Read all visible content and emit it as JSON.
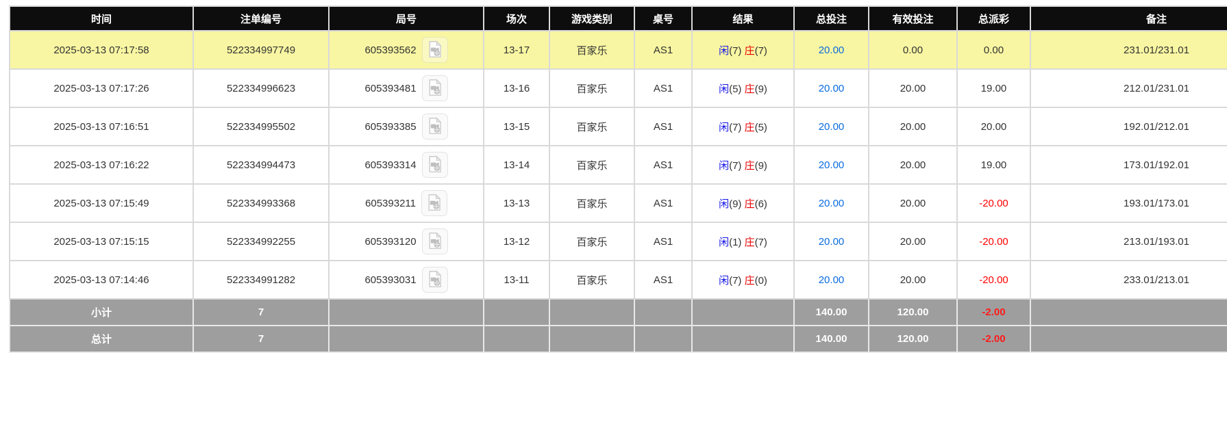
{
  "table": {
    "columns": [
      {
        "key": "time",
        "label": "时间"
      },
      {
        "key": "bet_id",
        "label": "注单编号"
      },
      {
        "key": "round_id",
        "label": "局号"
      },
      {
        "key": "session",
        "label": "场次"
      },
      {
        "key": "game_type",
        "label": "游戏类别"
      },
      {
        "key": "table_no",
        "label": "桌号"
      },
      {
        "key": "result",
        "label": "结果"
      },
      {
        "key": "total_bet",
        "label": "总投注"
      },
      {
        "key": "valid_bet",
        "label": "有效投注"
      },
      {
        "key": "payout",
        "label": "总派彩"
      },
      {
        "key": "remark",
        "label": "备注"
      }
    ],
    "result_labels": {
      "player": "闲",
      "banker": "庄"
    },
    "rows": [
      {
        "time": "2025-03-13 07:17:58",
        "bet_id": "522334997749",
        "round_id": "605393562",
        "session": "13-17",
        "game_type": "百家乐",
        "table_no": "AS1",
        "result": {
          "player": "7",
          "banker": "7"
        },
        "total_bet": "20.00",
        "valid_bet": "0.00",
        "payout": "0.00",
        "remark": "231.01/231.01",
        "highlighted": true
      },
      {
        "time": "2025-03-13 07:17:26",
        "bet_id": "522334996623",
        "round_id": "605393481",
        "session": "13-16",
        "game_type": "百家乐",
        "table_no": "AS1",
        "result": {
          "player": "5",
          "banker": "9"
        },
        "total_bet": "20.00",
        "valid_bet": "20.00",
        "payout": "19.00",
        "remark": "212.01/231.01",
        "highlighted": false
      },
      {
        "time": "2025-03-13 07:16:51",
        "bet_id": "522334995502",
        "round_id": "605393385",
        "session": "13-15",
        "game_type": "百家乐",
        "table_no": "AS1",
        "result": {
          "player": "7",
          "banker": "5"
        },
        "total_bet": "20.00",
        "valid_bet": "20.00",
        "payout": "20.00",
        "remark": "192.01/212.01",
        "highlighted": false
      },
      {
        "time": "2025-03-13 07:16:22",
        "bet_id": "522334994473",
        "round_id": "605393314",
        "session": "13-14",
        "game_type": "百家乐",
        "table_no": "AS1",
        "result": {
          "player": "7",
          "banker": "9"
        },
        "total_bet": "20.00",
        "valid_bet": "20.00",
        "payout": "19.00",
        "remark": "173.01/192.01",
        "highlighted": false
      },
      {
        "time": "2025-03-13 07:15:49",
        "bet_id": "522334993368",
        "round_id": "605393211",
        "session": "13-13",
        "game_type": "百家乐",
        "table_no": "AS1",
        "result": {
          "player": "9",
          "banker": "6"
        },
        "total_bet": "20.00",
        "valid_bet": "20.00",
        "payout": "-20.00",
        "remark": "193.01/173.01",
        "highlighted": false
      },
      {
        "time": "2025-03-13 07:15:15",
        "bet_id": "522334992255",
        "round_id": "605393120",
        "session": "13-12",
        "game_type": "百家乐",
        "table_no": "AS1",
        "result": {
          "player": "1",
          "banker": "7"
        },
        "total_bet": "20.00",
        "valid_bet": "20.00",
        "payout": "-20.00",
        "remark": "213.01/193.01",
        "highlighted": false
      },
      {
        "time": "2025-03-13 07:14:46",
        "bet_id": "522334991282",
        "round_id": "605393031",
        "session": "13-11",
        "game_type": "百家乐",
        "table_no": "AS1",
        "result": {
          "player": "7",
          "banker": "0"
        },
        "total_bet": "20.00",
        "valid_bet": "20.00",
        "payout": "-20.00",
        "remark": "233.01/213.01",
        "highlighted": false
      }
    ],
    "summary_rows": [
      {
        "key": "subtotal",
        "label": "小计",
        "count": "7",
        "total_bet": "140.00",
        "valid_bet": "120.00",
        "payout": "-2.00"
      },
      {
        "key": "total",
        "label": "总计",
        "count": "7",
        "total_bet": "140.00",
        "valid_bet": "120.00",
        "payout": "-2.00"
      }
    ],
    "icons": {
      "round_video": "video-replay-icon"
    }
  },
  "colors": {
    "header_bg": "#0d0d0d",
    "highlight_yellow": "#f8f6a2",
    "summary_gray": "#9e9e9e",
    "player_blue": "#1414e8",
    "banker_red": "#e60000",
    "total_bet_blue": "#0a6ce0",
    "negative_red": "#ff0000",
    "grid_border": "#d9d9d9"
  }
}
